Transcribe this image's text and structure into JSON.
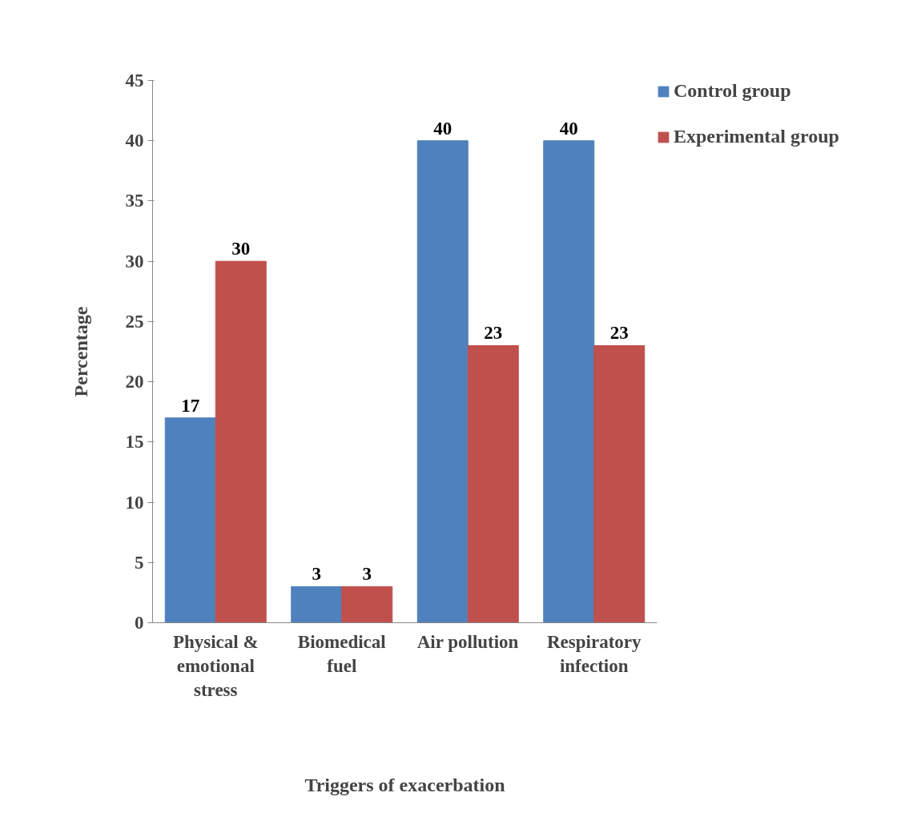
{
  "chart_data": {
    "type": "bar",
    "xlabel": "Triggers of exacerbation",
    "ylabel": "Percentage",
    "categories": [
      "Physical & emotional stress",
      "Biomedical fuel",
      "Air pollution",
      "Respiratory infection"
    ],
    "series": [
      {
        "name": "Control group",
        "color": "#4f81bd",
        "values": [
          17,
          3,
          40,
          40
        ]
      },
      {
        "name": "Experimental group",
        "color": "#c0504d",
        "values": [
          30,
          3,
          23,
          23
        ]
      }
    ],
    "ylim": [
      0,
      45
    ],
    "yticks": [
      0,
      5,
      10,
      15,
      20,
      25,
      30,
      35,
      40,
      45
    ],
    "grid": false,
    "legend": "top right",
    "data_labels": true
  }
}
